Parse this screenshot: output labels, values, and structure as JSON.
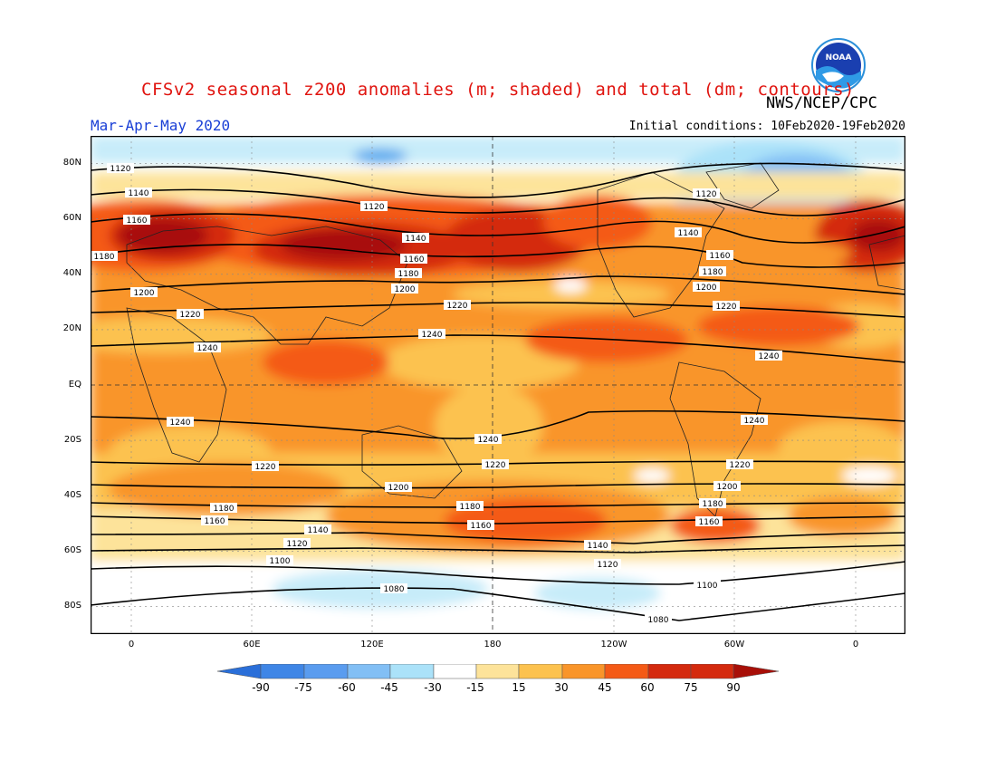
{
  "title": "CFSv2 seasonal z200 anomalies (m; shaded) and total (dm; contours)",
  "agency": "NWS/NCEP/CPC",
  "logo_text": "NOAA",
  "season": "Mar-Apr-May 2020",
  "initial_conditions": "Initial conditions: 10Feb2020-19Feb2020",
  "lat_labels": [
    "80N",
    "60N",
    "40N",
    "20N",
    "EQ",
    "20S",
    "40S",
    "60S",
    "80S"
  ],
  "lon_labels": [
    "0",
    "60E",
    "120E",
    "180",
    "120W",
    "60W",
    "0"
  ],
  "colorbar": {
    "labels": [
      "-90",
      "-75",
      "-60",
      "-45",
      "-30",
      "-15",
      "15",
      "30",
      "45",
      "60",
      "75",
      "90"
    ],
    "colors": [
      "#2a6fd9",
      "#3f86e6",
      "#5a9cef",
      "#82bff5",
      "#abe2f9",
      "#ffffff",
      "#fde39a",
      "#fcc24f",
      "#f9952a",
      "#f45a16",
      "#d42a0e",
      "#a80f08"
    ]
  },
  "contour_labels": [
    "1080",
    "1100",
    "1120",
    "1140",
    "1160",
    "1180",
    "1200",
    "1220",
    "1240"
  ]
}
